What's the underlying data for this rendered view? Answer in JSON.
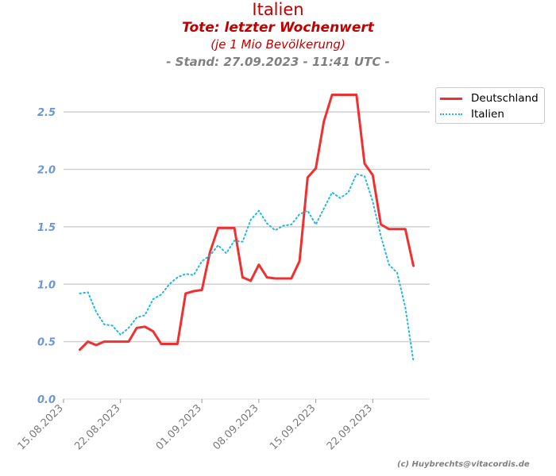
{
  "titles": {
    "line1": "Italien",
    "line2": "Tote: letzter Wochenwert",
    "line3": "(je 1 Mio Bevölkerung)",
    "line4": "- Stand: 27.09.2023 - 11:41 UTC -"
  },
  "credit": "(c) Huybrechts@vitacordis.de",
  "chart_data": {
    "type": "line",
    "title": "Italien",
    "subtitle": "Tote: letzter Wochenwert",
    "xlabel": "",
    "ylabel": "",
    "xlim": [
      "2023-08-15",
      "2023-09-29"
    ],
    "ylim": [
      0,
      2.75
    ],
    "x_ticks": [
      "15.08.2023",
      "22.08.2023",
      "01.09.2023",
      "08.09.2023",
      "15.09.2023",
      "22.09.2023"
    ],
    "y_ticks": [
      "0.0",
      "0.5",
      "1.0",
      "1.5",
      "2.0",
      "2.5"
    ],
    "grid": "horizontal",
    "legend_position": "top-right outside",
    "colors": {
      "title": "#c00000",
      "stand": "#808080",
      "ytick": "#6a96d8",
      "grid": "#d0d0d0"
    },
    "series": [
      {
        "name": "Deutschland",
        "color": "#f03030",
        "style": "solid",
        "points": [
          [
            "2023-08-17",
            0.43
          ],
          [
            "2023-08-18",
            0.5
          ],
          [
            "2023-08-19",
            0.47
          ],
          [
            "2023-08-20",
            0.5
          ],
          [
            "2023-08-21",
            0.5
          ],
          [
            "2023-08-22",
            0.5
          ],
          [
            "2023-08-23",
            0.5
          ],
          [
            "2023-08-24",
            0.62
          ],
          [
            "2023-08-25",
            0.63
          ],
          [
            "2023-08-26",
            0.59
          ],
          [
            "2023-08-27",
            0.48
          ],
          [
            "2023-08-28",
            0.48
          ],
          [
            "2023-08-29",
            0.48
          ],
          [
            "2023-08-30",
            0.92
          ],
          [
            "2023-08-31",
            0.94
          ],
          [
            "2023-09-01",
            0.95
          ],
          [
            "2023-09-02",
            1.28
          ],
          [
            "2023-09-03",
            1.49
          ],
          [
            "2023-09-04",
            1.49
          ],
          [
            "2023-09-05",
            1.49
          ],
          [
            "2023-09-06",
            1.06
          ],
          [
            "2023-09-07",
            1.03
          ],
          [
            "2023-09-08",
            1.17
          ],
          [
            "2023-09-09",
            1.06
          ],
          [
            "2023-09-10",
            1.05
          ],
          [
            "2023-09-11",
            1.05
          ],
          [
            "2023-09-12",
            1.05
          ],
          [
            "2023-09-13",
            1.2
          ],
          [
            "2023-09-14",
            1.93
          ],
          [
            "2023-09-15",
            2.01
          ],
          [
            "2023-09-16",
            2.42
          ],
          [
            "2023-09-17",
            2.65
          ],
          [
            "2023-09-18",
            2.65
          ],
          [
            "2023-09-19",
            2.65
          ],
          [
            "2023-09-20",
            2.65
          ],
          [
            "2023-09-21",
            2.05
          ],
          [
            "2023-09-22",
            1.95
          ],
          [
            "2023-09-23",
            1.52
          ],
          [
            "2023-09-24",
            1.48
          ],
          [
            "2023-09-25",
            1.48
          ],
          [
            "2023-09-26",
            1.48
          ],
          [
            "2023-09-27",
            1.16
          ]
        ]
      },
      {
        "name": "Italien",
        "color": "#1fb8e6",
        "style": "dotted",
        "points": [
          [
            "2023-08-17",
            0.92
          ],
          [
            "2023-08-18",
            0.93
          ],
          [
            "2023-08-19",
            0.76
          ],
          [
            "2023-08-20",
            0.65
          ],
          [
            "2023-08-21",
            0.64
          ],
          [
            "2023-08-22",
            0.56
          ],
          [
            "2023-08-23",
            0.62
          ],
          [
            "2023-08-24",
            0.71
          ],
          [
            "2023-08-25",
            0.73
          ],
          [
            "2023-08-26",
            0.87
          ],
          [
            "2023-08-27",
            0.91
          ],
          [
            "2023-08-28",
            1.0
          ],
          [
            "2023-08-29",
            1.06
          ],
          [
            "2023-08-30",
            1.09
          ],
          [
            "2023-08-31",
            1.08
          ],
          [
            "2023-09-01",
            1.2
          ],
          [
            "2023-09-02",
            1.25
          ],
          [
            "2023-09-03",
            1.34
          ],
          [
            "2023-09-04",
            1.27
          ],
          [
            "2023-09-05",
            1.38
          ],
          [
            "2023-09-06",
            1.37
          ],
          [
            "2023-09-07",
            1.56
          ],
          [
            "2023-09-08",
            1.64
          ],
          [
            "2023-09-09",
            1.53
          ],
          [
            "2023-09-10",
            1.47
          ],
          [
            "2023-09-11",
            1.51
          ],
          [
            "2023-09-12",
            1.52
          ],
          [
            "2023-09-13",
            1.61
          ],
          [
            "2023-09-14",
            1.64
          ],
          [
            "2023-09-15",
            1.52
          ],
          [
            "2023-09-16",
            1.66
          ],
          [
            "2023-09-17",
            1.8
          ],
          [
            "2023-09-18",
            1.75
          ],
          [
            "2023-09-19",
            1.8
          ],
          [
            "2023-09-20",
            1.96
          ],
          [
            "2023-09-21",
            1.94
          ],
          [
            "2023-09-22",
            1.72
          ],
          [
            "2023-09-23",
            1.42
          ],
          [
            "2023-09-24",
            1.17
          ],
          [
            "2023-09-25",
            1.1
          ],
          [
            "2023-09-26",
            0.8
          ],
          [
            "2023-09-27",
            0.33
          ]
        ]
      }
    ]
  }
}
